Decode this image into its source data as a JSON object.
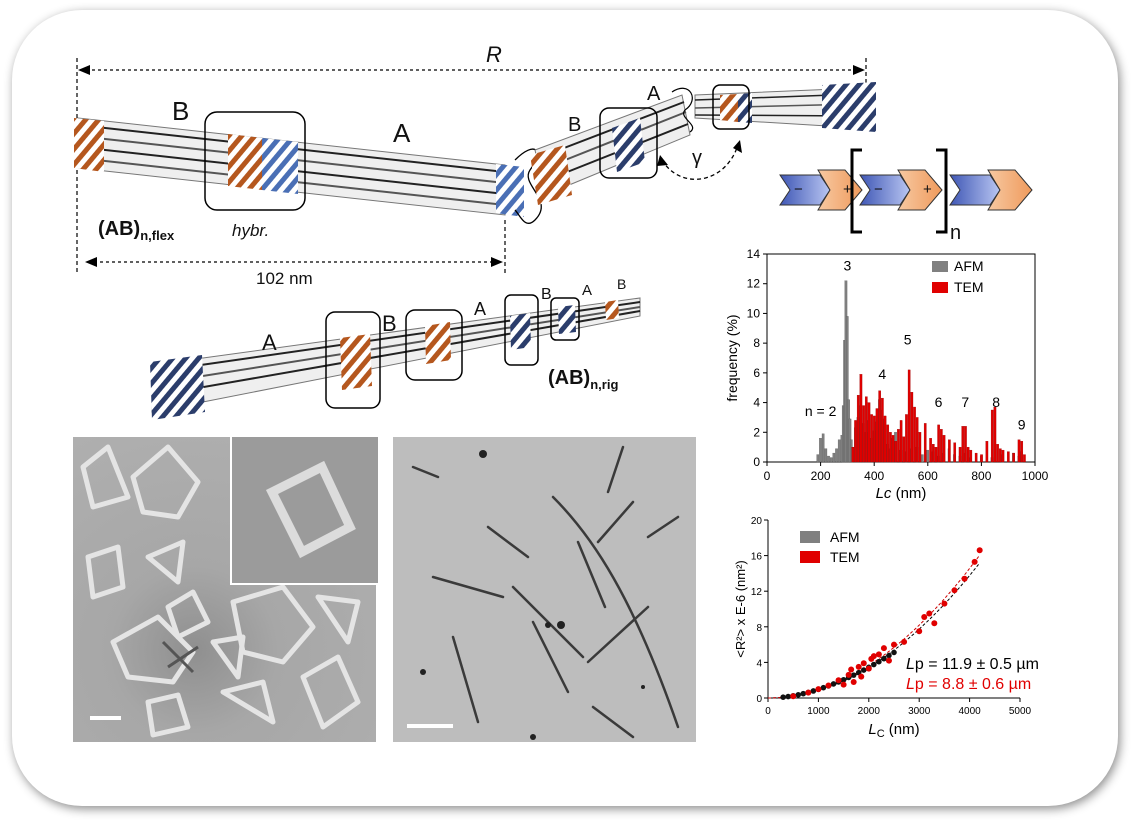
{
  "figure": {
    "R_label": "R",
    "flex_block_B": "B",
    "flex_block_A": "A",
    "flex_block_B2": "B",
    "flex_block_A2": "A",
    "gamma": "γ",
    "flex_name_main": "(AB)",
    "flex_name_sub": "n,flex",
    "hybr": "hybr.",
    "length_label": "102 nm",
    "rig_labels": [
      "A",
      "B",
      "A",
      "B",
      "A",
      "B"
    ],
    "rig_name_main": "(AB)",
    "rig_name_sub": "n,rig",
    "scheme_n": "n",
    "scheme_signs": [
      "−",
      "+",
      "−",
      "+"
    ]
  },
  "colors": {
    "orange": "#b5571e",
    "blue": "#4a6fb5",
    "afm": "#808080",
    "tem": "#e00000",
    "arrow_blue": "#6f86cf",
    "arrow_orange": "#f0a770"
  },
  "chart_data": [
    {
      "type": "bar",
      "title": "",
      "xlabel": "Lc (nm)",
      "ylabel": "frequency (%)",
      "xlim": [
        0,
        1000
      ],
      "ylim": [
        0,
        14
      ],
      "xticks": [
        0,
        200,
        400,
        600,
        800,
        1000
      ],
      "yticks": [
        0,
        2,
        4,
        6,
        8,
        10,
        12,
        14
      ],
      "legend": [
        "AFM",
        "TEM"
      ],
      "legend_position": "top-right",
      "annotations": [
        {
          "text": "3",
          "x": 300,
          "y": 12.9
        },
        {
          "text": "4",
          "x": 430,
          "y": 5.6
        },
        {
          "text": "5",
          "x": 525,
          "y": 7.9
        },
        {
          "text": "6",
          "x": 640,
          "y": 3.7
        },
        {
          "text": "7",
          "x": 740,
          "y": 3.7
        },
        {
          "text": "8",
          "x": 855,
          "y": 3.7
        },
        {
          "text": "9",
          "x": 950,
          "y": 2.2
        },
        {
          "text": "n = 2",
          "x": 200,
          "y": 3.1
        }
      ],
      "series": [
        {
          "name": "AFM",
          "x": [
            190,
            200,
            210,
            220,
            230,
            240,
            250,
            260,
            270,
            280,
            285,
            290,
            295,
            300,
            305,
            310,
            315,
            320,
            330,
            340,
            350,
            360,
            370,
            380,
            390,
            400,
            410,
            420,
            430,
            440,
            450,
            460,
            470,
            480,
            500,
            520,
            540,
            560,
            580,
            600,
            620,
            640,
            660,
            680,
            700,
            720,
            740,
            760,
            800,
            840,
            880,
            920,
            940,
            950
          ],
          "values": [
            0.5,
            1.6,
            1.9,
            0.9,
            0.4,
            0.3,
            0.6,
            0.9,
            1.5,
            1.8,
            3.8,
            8.2,
            12.2,
            9.8,
            4.2,
            2.9,
            1.5,
            1.0,
            2.3,
            3.0,
            3.8,
            2.6,
            2.0,
            2.8,
            1.6,
            2.1,
            2.7,
            4.2,
            3.5,
            2.9,
            1.2,
            0.9,
            1.6,
            2.0,
            0.8,
            0.7,
            0.9,
            1.0,
            0.5,
            0.8,
            0.7,
            0.4,
            0.6,
            0.9,
            0.5,
            0.4,
            0.6,
            0.3,
            0.4,
            0.3,
            0.5,
            0.6,
            0.4,
            0.7
          ]
        },
        {
          "name": "TEM",
          "x": [
            320,
            330,
            340,
            350,
            360,
            370,
            380,
            390,
            400,
            410,
            420,
            430,
            440,
            450,
            460,
            470,
            480,
            490,
            500,
            510,
            520,
            530,
            540,
            550,
            560,
            570,
            590,
            610,
            620,
            630,
            640,
            650,
            660,
            680,
            700,
            720,
            730,
            740,
            750,
            760,
            780,
            800,
            820,
            840,
            850,
            860,
            870,
            880,
            900,
            920,
            940,
            950,
            960
          ],
          "values": [
            1.0,
            2.8,
            4.5,
            5.9,
            3.8,
            4.4,
            4.0,
            3.2,
            3.1,
            3.6,
            4.8,
            4.3,
            3.1,
            2.5,
            2.0,
            1.8,
            1.4,
            2.2,
            2.8,
            1.7,
            3.2,
            6.2,
            4.7,
            3.7,
            3.0,
            2.0,
            2.6,
            1.6,
            1.2,
            1.0,
            2.5,
            2.2,
            1.8,
            1.5,
            1.3,
            1.0,
            2.4,
            2.4,
            1.0,
            0.8,
            0.6,
            0.5,
            1.4,
            3.5,
            3.7,
            1.2,
            0.9,
            0.8,
            0.7,
            0.6,
            1.5,
            1.4,
            0.5
          ]
        }
      ]
    },
    {
      "type": "scatter",
      "title": "",
      "xlabel": "LC (nm)",
      "ylabel": "<R²> x E-6 (nm²)",
      "xlim": [
        0,
        5000
      ],
      "ylim": [
        0,
        20
      ],
      "xticks": [
        0,
        1000,
        2000,
        3000,
        4000,
        5000
      ],
      "yticks": [
        0,
        4,
        8,
        12,
        16,
        20
      ],
      "legend": [
        "AFM",
        "TEM"
      ],
      "legend_position": "top-left",
      "fit_annotations": [
        {
          "series": "AFM",
          "lp_prefix": "L",
          "lp_sub": "p",
          "text": " =  11.9 ± 0.5 µm"
        },
        {
          "series": "TEM",
          "lp_prefix": "L",
          "lp_sub": "p",
          "text": " =  8.8 ± 0.6 µm"
        }
      ],
      "series": [
        {
          "name": "AFM",
          "x": [
            300,
            400,
            500,
            600,
            700,
            800,
            900,
            1000,
            1100,
            1200,
            1300,
            1400,
            1500,
            1600,
            1700,
            1800,
            1900,
            2000,
            2100,
            2200,
            2300,
            2400,
            2500
          ],
          "values": [
            0.09,
            0.16,
            0.25,
            0.36,
            0.49,
            0.63,
            0.79,
            0.97,
            1.16,
            1.36,
            1.58,
            1.81,
            2.05,
            2.31,
            2.57,
            2.85,
            3.14,
            3.45,
            3.76,
            4.08,
            4.42,
            4.77,
            5.12
          ]
        },
        {
          "name": "TEM",
          "x": [
            500,
            800,
            1000,
            1200,
            1400,
            1500,
            1600,
            1650,
            1700,
            1800,
            1850,
            1900,
            2000,
            2050,
            2100,
            2200,
            2300,
            2400,
            2500,
            2700,
            3000,
            3100,
            3200,
            3300,
            3500,
            3700,
            3900,
            4100,
            4200
          ],
          "values": [
            0.2,
            0.6,
            1.0,
            1.4,
            2.0,
            1.5,
            2.6,
            3.2,
            1.8,
            3.5,
            2.4,
            3.9,
            3.3,
            4.4,
            4.7,
            4.9,
            5.6,
            4.2,
            6.0,
            6.3,
            7.5,
            9.1,
            9.5,
            8.4,
            10.6,
            12.1,
            13.4,
            15.3,
            16.6
          ]
        }
      ]
    }
  ]
}
